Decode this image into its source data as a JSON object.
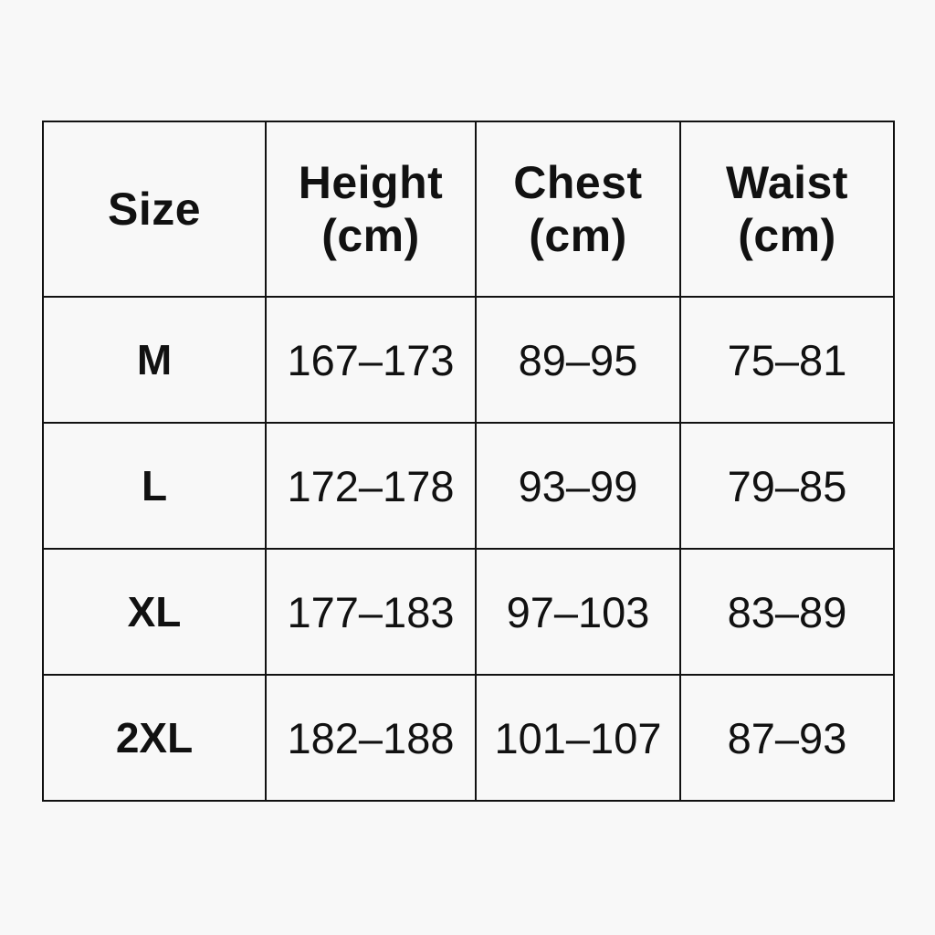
{
  "table": {
    "headers": [
      {
        "line1": "Size",
        "line2": ""
      },
      {
        "line1": "Height",
        "line2": "(cm)"
      },
      {
        "line1": "Chest",
        "line2": "(cm)"
      },
      {
        "line1": "Waist",
        "line2": "(cm)"
      }
    ],
    "rows": [
      [
        "M",
        "167–173",
        "89–95",
        "75–81"
      ],
      [
        "L",
        "172–178",
        "93–99",
        "79–85"
      ],
      [
        "XL",
        "177–183",
        "97–103",
        "83–89"
      ],
      [
        "2XL",
        "182–188",
        "101–107",
        "87–93"
      ]
    ]
  }
}
